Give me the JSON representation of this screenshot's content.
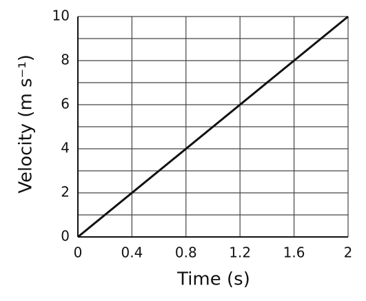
{
  "chart_data": {
    "type": "line",
    "x_label": "Time (s)",
    "y_label": "Velocity (m s⁻¹)",
    "x": [
      0,
      2
    ],
    "series": [
      {
        "color": "#111111",
        "values": [
          0,
          10
        ]
      }
    ],
    "xlim": [
      0,
      2
    ],
    "xticks": [
      0,
      0.4,
      0.8,
      1.2,
      1.6,
      2
    ],
    "ylim": [
      0,
      10
    ],
    "yticks": [
      0,
      2,
      4,
      6,
      8,
      10
    ],
    "y_minor_grid": [
      1,
      3,
      5,
      7,
      9
    ],
    "grid": true
  }
}
